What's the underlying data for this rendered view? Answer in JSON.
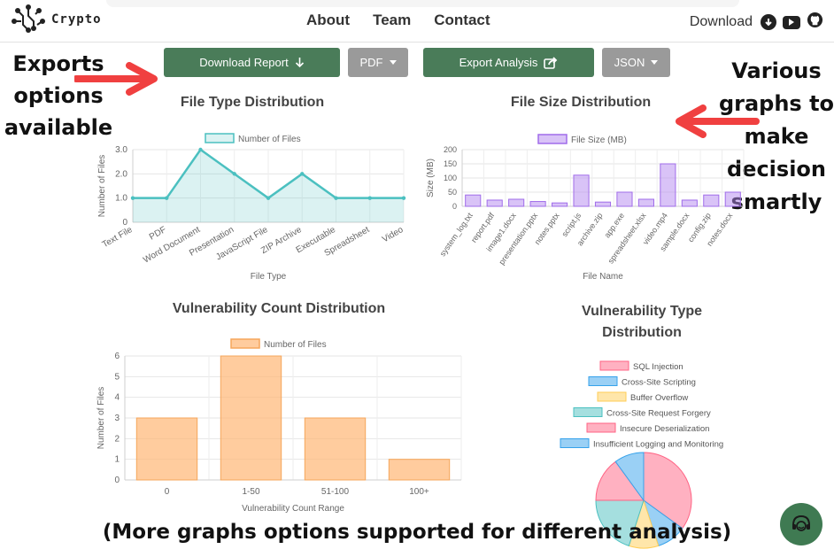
{
  "header": {
    "logo_text": "Crypto",
    "nav": [
      "About",
      "Team",
      "Contact"
    ],
    "download_label": "Download"
  },
  "toolbar": {
    "download_report": "Download Report",
    "pdf": "PDF",
    "export_analysis": "Export Analysis",
    "json": "JSON"
  },
  "annotations": {
    "left": [
      "Exports",
      "options",
      "available"
    ],
    "right": [
      "Various",
      "graphs to",
      "make",
      "decision",
      "smartly"
    ],
    "bottom": "(More graphs options supported for different analysis)"
  },
  "colors": {
    "green_button": "#4a7c59",
    "gray_button": "#9a9a9a",
    "arrow": "#f04040",
    "teal": "#4bc0c0",
    "purple": "#b388f0",
    "orange": "#ffb775"
  },
  "chart_data": [
    {
      "type": "area",
      "title": "File Type Distribution",
      "legend": "Number of Files",
      "xlabel": "File Type",
      "ylabel": "Number of Files",
      "categories": [
        "Text File",
        "PDF",
        "Word Document",
        "Presentation",
        "JavaScript File",
        "ZIP Archive",
        "Executable",
        "Spreadsheet",
        "Video"
      ],
      "values": [
        1,
        1,
        3,
        2,
        1,
        2,
        1,
        1,
        1
      ],
      "yticks": [
        "0",
        "1.0",
        "2.0",
        "3.0"
      ],
      "ylim": [
        0,
        3
      ]
    },
    {
      "type": "bar",
      "title": "File Size Distribution",
      "legend": "File Size (MB)",
      "xlabel": "File Name",
      "ylabel": "Size (MB)",
      "categories": [
        "system_log.txt",
        "report.pdf",
        "image1.docx",
        "presentation.pptx",
        "notes.pptx",
        "script.js",
        "archive.zip",
        "app.exe",
        "spreadsheet.xlsx",
        "video.mp4",
        "sample.docx",
        "config.zip",
        "notes.docx"
      ],
      "values": [
        40,
        22,
        25,
        17,
        12,
        110,
        15,
        50,
        25,
        150,
        22,
        40,
        50
      ],
      "yticks": [
        "0",
        "50",
        "100",
        "150",
        "200"
      ],
      "ylim": [
        0,
        200
      ]
    },
    {
      "type": "bar",
      "title": "Vulnerability Count Distribution",
      "legend": "Number of Files",
      "xlabel": "Vulnerability Count Range",
      "ylabel": "Number of Files",
      "categories": [
        "0",
        "1-50",
        "51-100",
        "100+"
      ],
      "values": [
        3,
        6,
        3,
        1
      ],
      "yticks": [
        "0",
        "1",
        "2",
        "3",
        "4",
        "5",
        "6"
      ],
      "ylim": [
        0,
        6
      ]
    },
    {
      "type": "pie",
      "title_lines": [
        "Vulnerability Type",
        "Distribution"
      ],
      "labels": [
        "SQL Injection",
        "Cross-Site Scripting",
        "Buffer Overflow",
        "Cross-Site Request Forgery",
        "Insecure Deserialization",
        "Insufficient Logging and Monitoring"
      ],
      "values": [
        35,
        10,
        10,
        20,
        15,
        10
      ],
      "colors": [
        "#ffb1c1",
        "#9ad0f5",
        "#ffe6aa",
        "#a5dfdf",
        "#ffb1c1",
        "#9ad0f5"
      ],
      "borders": [
        "#ff6384",
        "#36a2eb",
        "#ffcd56",
        "#4bc0c0",
        "#ff6384",
        "#36a2eb"
      ]
    }
  ]
}
